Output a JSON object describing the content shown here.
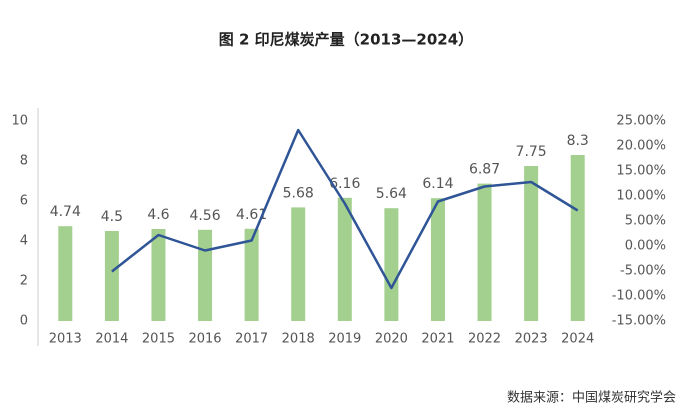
{
  "chart_data": {
    "type": "combo",
    "title": "图 2 印尼煤炭产量（2013—2024）",
    "source": "数据来源：中国煤炭研究学会",
    "categories": [
      "2013",
      "2014",
      "2015",
      "2016",
      "2017",
      "2018",
      "2019",
      "2020",
      "2021",
      "2022",
      "2023",
      "2024"
    ],
    "series": [
      {
        "type": "bar",
        "color": "#a3d08f",
        "values": [
          4.74,
          4.5,
          4.6,
          4.56,
          4.61,
          5.68,
          6.16,
          5.64,
          6.14,
          6.87,
          7.75,
          8.3
        ]
      },
      {
        "type": "line",
        "axis": "y2",
        "color": "#2f5597",
        "values": [
          null,
          -5.1,
          2.2,
          -0.9,
          1.1,
          23.2,
          8.5,
          -8.4,
          8.9,
          11.9,
          12.8,
          7.1
        ]
      }
    ],
    "ylim": [
      0,
      10
    ],
    "yticks": [
      0,
      2,
      4,
      6,
      8,
      10
    ],
    "y2lim": [
      -15,
      25
    ],
    "y2ticks": [
      {
        "value": 25,
        "label": "25.00%"
      },
      {
        "value": 20,
        "label": "20.00%"
      },
      {
        "value": 15,
        "label": "15.00%"
      },
      {
        "value": 10,
        "label": "10.00%"
      },
      {
        "value": 5,
        "label": "5.00%"
      },
      {
        "value": 0,
        "label": "0.00%"
      },
      {
        "value": -5,
        "label": "-5.00%"
      },
      {
        "value": -10,
        "label": "-10.00%"
      },
      {
        "value": -15,
        "label": "-15.00%"
      }
    ]
  }
}
